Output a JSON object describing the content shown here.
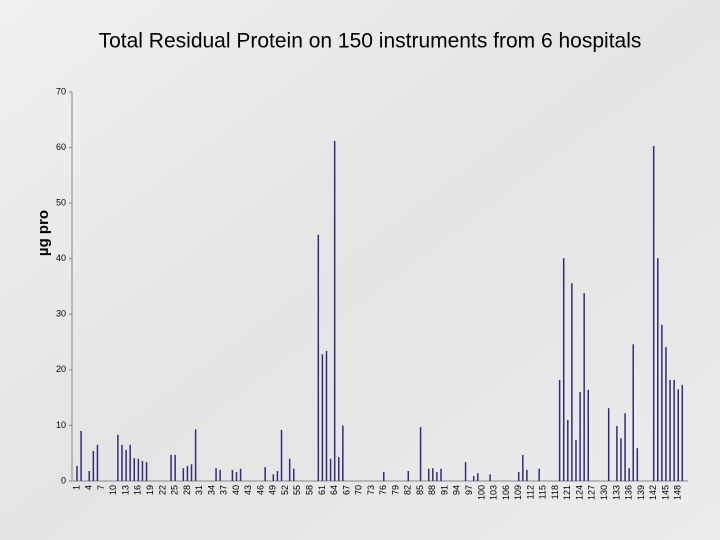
{
  "chart_data": {
    "type": "bar",
    "title": "Total Residual Protein on 150 instruments from 6 hospitals",
    "y_label": "µg pro",
    "color": "#2e2e7a",
    "ylim": [
      0,
      70
    ],
    "yticks": [
      0,
      10,
      20,
      30,
      40,
      50,
      60,
      70
    ],
    "categories": [
      "1",
      null,
      null,
      "4",
      null,
      null,
      "7",
      null,
      null,
      "10",
      null,
      null,
      "13",
      null,
      null,
      "16",
      null,
      null,
      "19",
      null,
      null,
      "22",
      null,
      null,
      "25",
      null,
      null,
      "28",
      null,
      null,
      "31",
      null,
      null,
      "34",
      null,
      null,
      "37",
      null,
      null,
      "40",
      null,
      null,
      "43",
      null,
      null,
      "46",
      null,
      null,
      "49",
      null,
      null,
      "52",
      null,
      null,
      "55",
      null,
      null,
      "58",
      null,
      null,
      "61",
      null,
      null,
      "64",
      null,
      null,
      "67",
      null,
      null,
      "70",
      null,
      null,
      "73",
      null,
      null,
      "76",
      null,
      null,
      "79",
      null,
      null,
      "82",
      null,
      null,
      "85",
      null,
      null,
      "88",
      null,
      null,
      "91",
      null,
      null,
      "94",
      null,
      null,
      "97",
      null,
      null,
      "100",
      null,
      null,
      "103",
      null,
      null,
      "106",
      null,
      null,
      "109",
      null,
      null,
      "112",
      null,
      null,
      "115",
      null,
      null,
      "118",
      null,
      null,
      "121",
      null,
      null,
      "124",
      null,
      null,
      "127",
      null,
      null,
      "130",
      null,
      null,
      "133",
      null,
      null,
      "136",
      null,
      null,
      "139",
      null,
      null,
      "142",
      null,
      null,
      "145",
      null,
      null,
      "148",
      null,
      null
    ],
    "values": [
      2.7,
      9,
      0,
      1.8,
      5.4,
      6.5,
      0,
      0,
      0,
      0,
      8.3,
      6.5,
      5.6,
      6.5,
      4.1,
      4,
      3.6,
      3.4,
      0,
      0,
      0,
      0,
      0,
      4.7,
      4.7,
      0,
      2.3,
      2.7,
      3,
      9.3,
      0,
      0,
      0,
      0,
      2.3,
      2,
      0,
      0,
      2,
      1.6,
      2.2,
      0,
      0,
      0,
      0,
      0,
      2.5,
      0,
      1.2,
      1.8,
      9.2,
      0,
      4,
      2.2,
      0,
      0,
      0,
      0,
      0,
      44.3,
      22.8,
      23.4,
      4,
      61.2,
      4.3,
      10,
      0,
      0,
      0,
      0,
      0,
      0,
      0,
      0,
      0,
      1.6,
      0,
      0,
      0,
      0,
      0,
      1.8,
      0,
      0,
      9.7,
      0,
      2.2,
      2.3,
      1.6,
      2.2,
      0,
      0,
      0,
      0,
      0,
      3.4,
      0,
      0.9,
      1.4,
      0,
      0,
      1.2,
      0,
      0,
      0,
      0,
      0,
      0,
      1.6,
      4.7,
      2,
      0,
      0,
      2.2,
      0,
      0,
      0,
      0,
      18.2,
      40.1,
      11,
      35.6,
      7.4,
      16,
      33.8,
      16.4,
      0,
      0,
      0,
      0,
      13.1,
      0,
      9.9,
      7.7,
      12.2,
      2.3,
      24.6,
      5.9,
      0,
      0,
      0,
      60.3,
      40.1,
      28.1,
      24.1,
      18.2,
      18.2,
      16.5,
      17.3,
      0
    ]
  }
}
